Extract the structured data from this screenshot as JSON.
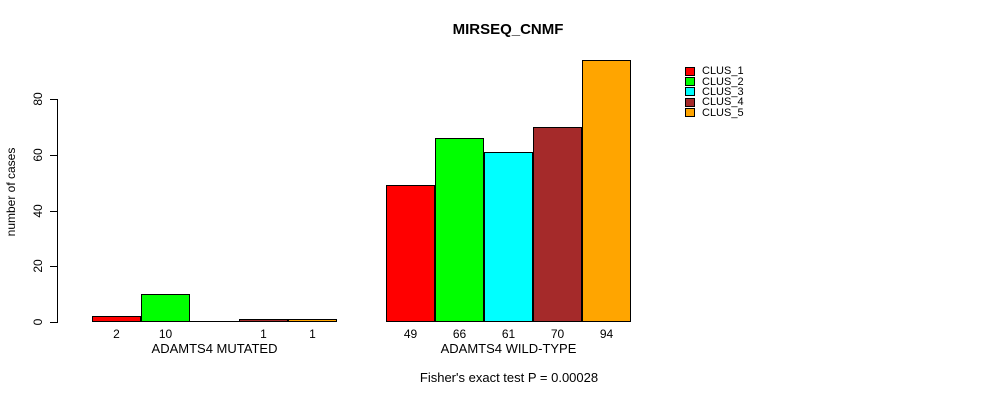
{
  "chart_data": {
    "type": "bar",
    "title": "MIRSEQ_CNMF",
    "xlabel": "",
    "ylabel": "number of cases",
    "ylim": [
      0,
      80
    ],
    "yticks": [
      0,
      20,
      40,
      60,
      80
    ],
    "grid": false,
    "legend_position": "right-outside",
    "categories": [
      "ADAMTS4 MUTATED",
      "ADAMTS4 WILD-TYPE"
    ],
    "series": [
      {
        "name": "CLUS_1",
        "color": "#ff0000",
        "values": [
          2,
          49
        ]
      },
      {
        "name": "CLUS_2",
        "color": "#00ff00",
        "values": [
          10,
          66
        ]
      },
      {
        "name": "CLUS_3",
        "color": "#00ffff",
        "values": [
          0,
          61
        ]
      },
      {
        "name": "CLUS_4",
        "color": "#a52a2a",
        "values": [
          1,
          70
        ]
      },
      {
        "name": "CLUS_5",
        "color": "#ffa500",
        "values": [
          1,
          94
        ]
      }
    ],
    "bar_value_labels": {
      "show": true,
      "hide_zero": true
    },
    "bar_border_color": "#000000",
    "annotation": "Fisher's exact test P = 0.00028"
  }
}
